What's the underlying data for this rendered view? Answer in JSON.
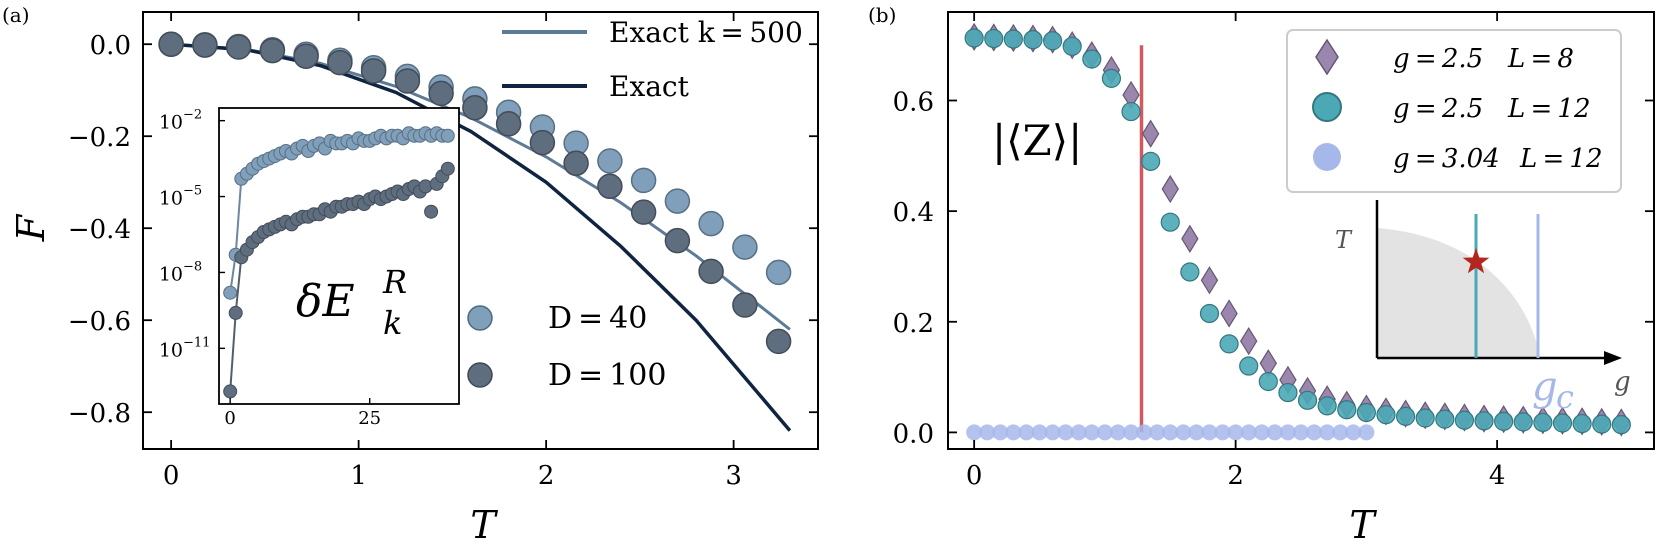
{
  "chart_data": [
    {
      "panel_label": "(a)",
      "type": "scatter+line",
      "xlabel": "T",
      "ylabel": "F",
      "xlim": [
        -0.15,
        3.45
      ],
      "ylim": [
        -0.88,
        0.07
      ],
      "xticks": [
        0,
        1,
        2,
        3
      ],
      "yticks": [
        0.0,
        -0.2,
        -0.4,
        -0.6,
        -0.8
      ],
      "ytick_labels": [
        "0.0",
        "−0.2",
        "−0.4",
        "−0.6",
        "−0.8"
      ],
      "legend": {
        "placement": "top-right",
        "entries": [
          "Exact k = 500",
          "Exact"
        ]
      },
      "lines": [
        {
          "name": "Exact k=500",
          "color": "#5d7a96",
          "x": [
            0,
            0.4,
            0.8,
            1.2,
            1.6,
            2.0,
            2.4,
            2.8,
            3.3
          ],
          "y": [
            0,
            -0.011,
            -0.042,
            -0.092,
            -0.16,
            -0.245,
            -0.345,
            -0.46,
            -0.62
          ]
        },
        {
          "name": "Exact",
          "color": "#0f2440",
          "x": [
            0,
            0.4,
            0.8,
            1.2,
            1.6,
            2.0,
            2.4,
            2.8,
            3.3
          ],
          "y": [
            0,
            -0.012,
            -0.047,
            -0.105,
            -0.19,
            -0.3,
            -0.44,
            -0.6,
            -0.84
          ]
        }
      ],
      "series": [
        {
          "name": "D = 40",
          "color": "#7f9fbb",
          "x": [
            0.0,
            0.18,
            0.36,
            0.54,
            0.72,
            0.9,
            1.08,
            1.26,
            1.44,
            1.62,
            1.8,
            1.98,
            2.16,
            2.34,
            2.52,
            2.7,
            2.88,
            3.06,
            3.24
          ],
          "y": [
            0.0,
            -0.001,
            -0.005,
            -0.012,
            -0.022,
            -0.035,
            -0.051,
            -0.07,
            -0.093,
            -0.119,
            -0.148,
            -0.18,
            -0.215,
            -0.254,
            -0.296,
            -0.341,
            -0.39,
            -0.441,
            -0.496
          ]
        },
        {
          "name": "D = 100",
          "color": "#5f6e7f",
          "x": [
            0.0,
            0.18,
            0.36,
            0.54,
            0.72,
            0.9,
            1.08,
            1.26,
            1.44,
            1.62,
            1.8,
            1.98,
            2.16,
            2.34,
            2.52,
            2.7,
            2.88,
            3.06,
            3.24
          ],
          "y": [
            0.0,
            -0.002,
            -0.006,
            -0.014,
            -0.026,
            -0.04,
            -0.058,
            -0.08,
            -0.107,
            -0.138,
            -0.173,
            -0.214,
            -0.259,
            -0.309,
            -0.365,
            -0.427,
            -0.494,
            -0.567,
            -0.646
          ]
        }
      ],
      "series_legend": [
        "D = 40",
        "D = 100"
      ],
      "inset": {
        "label_main": "δE",
        "label_sub": "k",
        "label_sup": "R",
        "xlim": [
          -2,
          41
        ],
        "ylog_range": [
          -13.2,
          -1.5
        ],
        "xticks": [
          0,
          25
        ],
        "yticks": [
          -2,
          -5,
          -8,
          -11
        ],
        "ytick_labels": [
          "10",
          "10",
          "10",
          "10"
        ],
        "ytick_exponents": [
          "−2",
          "−5",
          "−8",
          "−11"
        ],
        "series": [
          {
            "name": "D=40",
            "color": "#7f9fbb",
            "x": [
              0,
              1,
              2,
              3,
              4,
              5,
              6,
              7,
              8,
              9,
              10,
              11,
              12,
              13,
              14,
              15,
              16,
              17,
              18,
              19,
              20,
              21,
              22,
              23,
              24,
              25,
              26,
              27,
              28,
              29,
              30,
              31,
              32,
              33,
              34,
              35,
              36,
              37,
              38,
              39
            ],
            "ylog": [
              -8.8,
              -7.3,
              -4.3,
              -4.1,
              -3.9,
              -3.7,
              -3.6,
              -3.5,
              -3.4,
              -3.3,
              -3.2,
              -3.3,
              -3.1,
              -3.0,
              -3.2,
              -3.0,
              -2.9,
              -3.1,
              -2.8,
              -2.9,
              -2.9,
              -2.8,
              -2.9,
              -2.7,
              -2.8,
              -2.8,
              -2.7,
              -2.6,
              -2.7,
              -2.6,
              -2.6,
              -2.7,
              -2.5,
              -2.6,
              -2.6,
              -2.5,
              -2.6,
              -2.5,
              -2.6,
              -2.6
            ]
          },
          {
            "name": "D=100",
            "color": "#5f6e7f",
            "x": [
              0,
              1,
              2,
              3,
              4,
              5,
              6,
              7,
              8,
              9,
              10,
              11,
              12,
              13,
              14,
              15,
              16,
              17,
              18,
              19,
              20,
              21,
              22,
              23,
              24,
              25,
              26,
              27,
              28,
              29,
              30,
              31,
              32,
              33,
              34,
              35,
              36,
              37,
              38,
              39
            ],
            "ylog": [
              -12.7,
              -9.6,
              -7.4,
              -7.1,
              -6.8,
              -6.6,
              -6.4,
              -6.3,
              -6.2,
              -6.1,
              -6.0,
              -6.1,
              -5.9,
              -5.8,
              -5.8,
              -5.7,
              -5.7,
              -5.5,
              -5.6,
              -5.4,
              -5.4,
              -5.3,
              -5.3,
              -5.2,
              -5.3,
              -5.1,
              -5.0,
              -5.1,
              -5.0,
              -4.9,
              -4.8,
              -4.9,
              -4.7,
              -4.6,
              -4.8,
              -4.6,
              -5.6,
              -4.5,
              -4.2,
              -3.9
            ]
          }
        ]
      }
    },
    {
      "panel_label": "(b)",
      "type": "scatter",
      "xlabel": "T",
      "annotation": "|⟨Z⟩|",
      "xlim": [
        -0.2,
        5.2
      ],
      "ylim": [
        -0.03,
        0.76
      ],
      "xticks": [
        0,
        2,
        4
      ],
      "yticks": [
        0.0,
        0.2,
        0.4,
        0.6
      ],
      "ytick_labels": [
        "0.0",
        "0.2",
        "0.4",
        "0.6"
      ],
      "vline": {
        "x": 1.28,
        "y0": 0.0,
        "y1": 0.7,
        "color": "#d05a5e"
      },
      "legend": {
        "placement": "top-right",
        "entries": [
          {
            "g": "g = 2.5",
            "L": "L = 8",
            "marker": "diamond",
            "color": "#9b86ad"
          },
          {
            "g": "g = 2.5",
            "L": "L = 12",
            "marker": "circle",
            "color": "#4ba9b6"
          },
          {
            "g": "g = 3.04",
            "L": "L = 12",
            "marker": "circle",
            "color": "#a6b8ea"
          }
        ]
      },
      "series": [
        {
          "name": "g=2.5 L=8",
          "marker": "diamond",
          "color": "#9b86ad",
          "x": [
            0.0,
            0.15,
            0.3,
            0.45,
            0.6,
            0.75,
            0.9,
            1.05,
            1.2,
            1.35,
            1.5,
            1.65,
            1.8,
            1.95,
            2.1,
            2.25,
            2.4,
            2.55,
            2.7,
            2.85,
            3.0,
            3.15,
            3.3,
            3.45,
            3.6,
            3.75,
            3.9,
            4.05,
            4.2,
            4.35,
            4.5,
            4.65,
            4.8,
            4.95
          ],
          "y": [
            0.715,
            0.714,
            0.713,
            0.712,
            0.71,
            0.7,
            0.682,
            0.655,
            0.61,
            0.54,
            0.44,
            0.35,
            0.275,
            0.215,
            0.165,
            0.125,
            0.095,
            0.075,
            0.06,
            0.05,
            0.043,
            0.038,
            0.034,
            0.031,
            0.029,
            0.027,
            0.025,
            0.024,
            0.023,
            0.022,
            0.021,
            0.02,
            0.019,
            0.018
          ]
        },
        {
          "name": "g=2.5 L=12",
          "marker": "circle",
          "color": "#4ba9b6",
          "x": [
            0.0,
            0.15,
            0.3,
            0.45,
            0.6,
            0.75,
            0.9,
            1.05,
            1.2,
            1.35,
            1.5,
            1.65,
            1.8,
            1.95,
            2.1,
            2.25,
            2.4,
            2.55,
            2.7,
            2.85,
            3.0,
            3.15,
            3.3,
            3.45,
            3.6,
            3.75,
            3.9,
            4.05,
            4.2,
            4.35,
            4.5,
            4.65,
            4.8,
            4.95
          ],
          "y": [
            0.713,
            0.712,
            0.711,
            0.71,
            0.708,
            0.698,
            0.675,
            0.64,
            0.58,
            0.49,
            0.38,
            0.29,
            0.215,
            0.16,
            0.12,
            0.092,
            0.072,
            0.058,
            0.048,
            0.041,
            0.036,
            0.032,
            0.029,
            0.026,
            0.024,
            0.022,
            0.021,
            0.02,
            0.019,
            0.018,
            0.017,
            0.016,
            0.015,
            0.014
          ]
        },
        {
          "name": "g=3.04 L=12",
          "marker": "circle",
          "color": "#a6b8ea",
          "x": [
            0.0,
            0.1,
            0.2,
            0.3,
            0.4,
            0.5,
            0.6,
            0.7,
            0.8,
            0.9,
            1.0,
            1.1,
            1.2,
            1.3,
            1.4,
            1.5,
            1.6,
            1.7,
            1.8,
            1.9,
            2.0,
            2.1,
            2.2,
            2.3,
            2.4,
            2.5,
            2.6,
            2.7,
            2.8,
            2.9,
            3.0
          ],
          "y": [
            0,
            0,
            0,
            0,
            0,
            0,
            0,
            0,
            0,
            0,
            0,
            0,
            0,
            0,
            0,
            0,
            0,
            0,
            0,
            0,
            0,
            0,
            0,
            0,
            0,
            0,
            0,
            0,
            0,
            0,
            0
          ]
        }
      ],
      "inset": {
        "xlabel": "g",
        "ylabel": "T",
        "gc_label": "g",
        "gc_sub": "c",
        "star_color": "#b3261e"
      }
    }
  ]
}
